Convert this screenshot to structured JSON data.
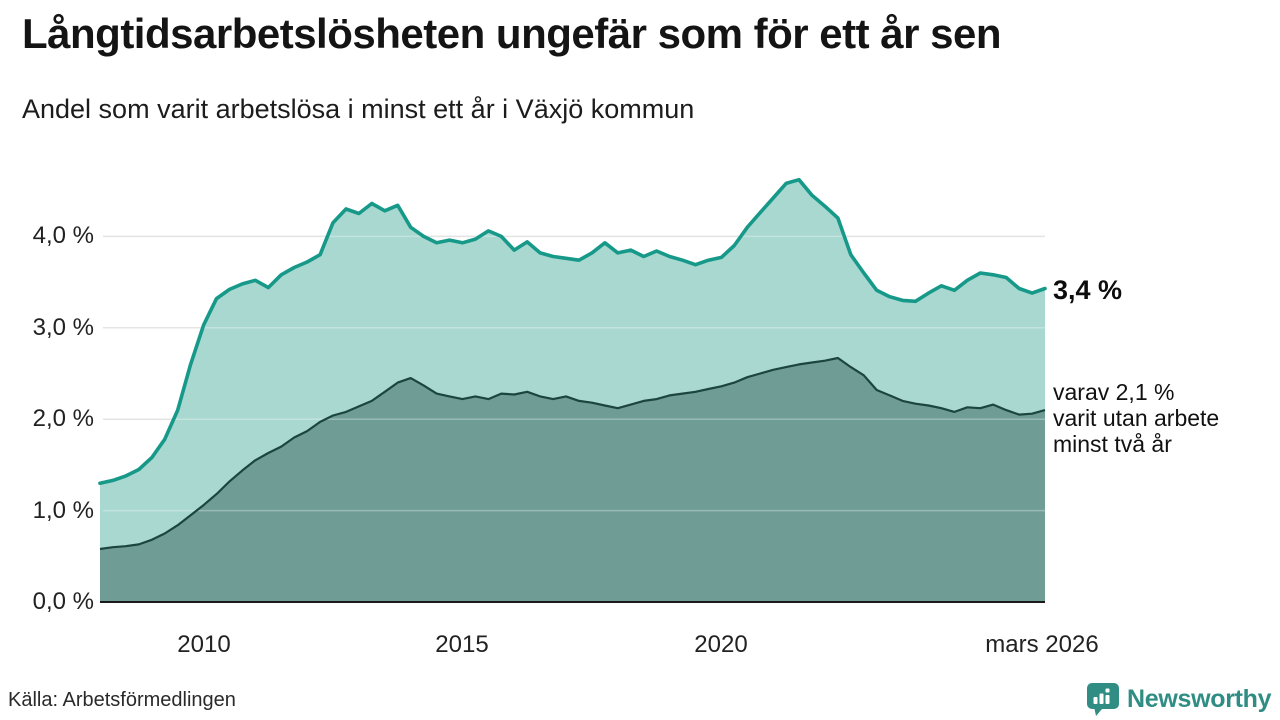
{
  "chart_data": {
    "type": "area",
    "title": "Långtidsarbetslösheten ungefär som för ett år sen",
    "subtitle": "Andel som varit arbetslösa i minst ett år i Växjö kommun",
    "grid": true,
    "legend_position": "none",
    "xlim": [
      2008,
      2026.25
    ],
    "ylim": [
      0,
      4.8
    ],
    "y_unit": "%",
    "x": [
      2008,
      2008.25,
      2008.5,
      2008.75,
      2009,
      2009.25,
      2009.5,
      2009.75,
      2010,
      2010.25,
      2010.5,
      2010.75,
      2011,
      2011.25,
      2011.5,
      2011.75,
      2012,
      2012.25,
      2012.5,
      2012.75,
      2013,
      2013.25,
      2013.5,
      2013.75,
      2014,
      2014.25,
      2014.5,
      2014.75,
      2015,
      2015.25,
      2015.5,
      2015.75,
      2016,
      2016.25,
      2016.5,
      2016.75,
      2017,
      2017.25,
      2017.5,
      2017.75,
      2018,
      2018.25,
      2018.5,
      2018.75,
      2019,
      2019.25,
      2019.5,
      2019.75,
      2020,
      2020.25,
      2020.5,
      2020.75,
      2021,
      2021.25,
      2021.5,
      2021.75,
      2022,
      2022.25,
      2022.5,
      2022.75,
      2023,
      2023.25,
      2023.5,
      2023.75,
      2024,
      2024.25,
      2024.5,
      2024.75,
      2025,
      2025.25,
      2025.5,
      2025.75,
      2026,
      2026.25
    ],
    "series": [
      {
        "name": "Arbetslösa minst ett år",
        "line_color": "#17998a",
        "fill_color": "#a9d8d0",
        "end_value": "3,4 %",
        "values": [
          1.3,
          1.33,
          1.38,
          1.45,
          1.58,
          1.78,
          2.1,
          2.6,
          3.03,
          3.32,
          3.42,
          3.48,
          3.52,
          3.44,
          3.58,
          3.66,
          3.72,
          3.8,
          4.15,
          4.3,
          4.25,
          4.36,
          4.28,
          4.34,
          4.1,
          4.0,
          3.93,
          3.96,
          3.93,
          3.97,
          4.06,
          4.0,
          3.85,
          3.94,
          3.82,
          3.78,
          3.76,
          3.74,
          3.82,
          3.93,
          3.82,
          3.85,
          3.78,
          3.84,
          3.78,
          3.74,
          3.69,
          3.74,
          3.77,
          3.9,
          4.1,
          4.26,
          4.42,
          4.58,
          4.62,
          4.45,
          4.33,
          4.2,
          3.8,
          3.6,
          3.41,
          3.34,
          3.3,
          3.29,
          3.38,
          3.46,
          3.41,
          3.52,
          3.6,
          3.58,
          3.55,
          3.43,
          3.38,
          3.43
        ]
      },
      {
        "name": "Arbetslösa minst två år",
        "line_color": "#1c453f",
        "fill_color": "#6f9d96",
        "end_value": "2,1 %",
        "values": [
          0.58,
          0.6,
          0.61,
          0.63,
          0.68,
          0.75,
          0.84,
          0.95,
          1.06,
          1.18,
          1.32,
          1.44,
          1.55,
          1.63,
          1.7,
          1.8,
          1.87,
          1.97,
          2.04,
          2.08,
          2.14,
          2.2,
          2.3,
          2.4,
          2.45,
          2.37,
          2.28,
          2.25,
          2.22,
          2.25,
          2.22,
          2.28,
          2.27,
          2.3,
          2.25,
          2.22,
          2.25,
          2.2,
          2.18,
          2.15,
          2.12,
          2.16,
          2.2,
          2.22,
          2.26,
          2.28,
          2.3,
          2.33,
          2.36,
          2.4,
          2.46,
          2.5,
          2.54,
          2.57,
          2.6,
          2.62,
          2.64,
          2.67,
          2.57,
          2.48,
          2.32,
          2.26,
          2.2,
          2.17,
          2.15,
          2.12,
          2.08,
          2.13,
          2.12,
          2.16,
          2.1,
          2.05,
          2.06,
          2.1
        ]
      }
    ],
    "x_ticks": [
      {
        "t": 2010,
        "label": "2010"
      },
      {
        "t": 2015,
        "label": "2015"
      },
      {
        "t": 2020,
        "label": "2020"
      },
      {
        "t": 2026.2,
        "label": "mars 2026"
      }
    ],
    "y_ticks": [
      {
        "v": 0,
        "label": "0,0 %"
      },
      {
        "v": 1,
        "label": "1,0 %"
      },
      {
        "v": 2,
        "label": "2,0 %"
      },
      {
        "v": 3,
        "label": "3,0 %"
      },
      {
        "v": 4,
        "label": "4,0 %"
      }
    ],
    "end_labels": {
      "total": "3,4 %",
      "two_year_lines": [
        "varav 2,1 %",
        "varit utan arbete",
        "minst två år"
      ]
    },
    "colors": {
      "grid": "#d8d8d8",
      "axis": "#1a1a1a",
      "text": "#222222"
    }
  },
  "footer": {
    "source": "Källa: Arbetsförmedlingen",
    "brand": "Newsworthy",
    "brand_color": "#2f8d84"
  }
}
